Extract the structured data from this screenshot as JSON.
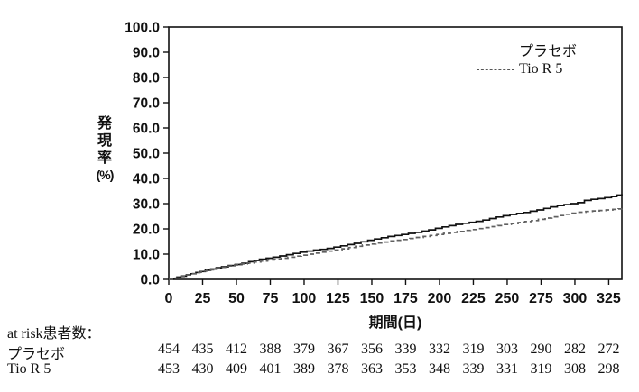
{
  "chart_data": {
    "type": "line",
    "subtype": "step-kaplan-meier",
    "title": "",
    "xlabel": "期間(日)",
    "ylabel": "発現率(%)",
    "ylabel_lines": [
      "発",
      "現",
      "率",
      "(%)"
    ],
    "xlim": [
      0,
      334.7
    ],
    "ylim": [
      0,
      100
    ],
    "x_ticks": [
      0,
      25,
      50,
      75,
      100,
      125,
      150,
      175,
      200,
      225,
      250,
      275,
      300,
      325
    ],
    "y_ticks": [
      0,
      10,
      20,
      30,
      40,
      50,
      60,
      70,
      80,
      90,
      100
    ],
    "y_tick_decimals": 1,
    "grid": false,
    "legend_position": "top-right-inside",
    "frame_color": "#111111",
    "series": [
      {
        "name": "プラセボ",
        "style": "solid",
        "color": "#111111",
        "points": [
          [
            0,
            0
          ],
          [
            3,
            0.4
          ],
          [
            6,
            0.9
          ],
          [
            9,
            1.3
          ],
          [
            13,
            1.8
          ],
          [
            16,
            2.2
          ],
          [
            20,
            2.7
          ],
          [
            23,
            3.1
          ],
          [
            27,
            3.6
          ],
          [
            31,
            4.1
          ],
          [
            35,
            4.6
          ],
          [
            39,
            5.0
          ],
          [
            44,
            5.5
          ],
          [
            49,
            5.9
          ],
          [
            54,
            6.4
          ],
          [
            59,
            7.0
          ],
          [
            63,
            7.5
          ],
          [
            67,
            8.0
          ],
          [
            72,
            8.4
          ],
          [
            77,
            8.8
          ],
          [
            82,
            9.3
          ],
          [
            87,
            9.8
          ],
          [
            92,
            10.3
          ],
          [
            97,
            10.8
          ],
          [
            102,
            11.2
          ],
          [
            107,
            11.6
          ],
          [
            112,
            11.9
          ],
          [
            117,
            12.3
          ],
          [
            122,
            12.8
          ],
          [
            127,
            13.3
          ],
          [
            132,
            13.8
          ],
          [
            137,
            14.3
          ],
          [
            142,
            14.9
          ],
          [
            147,
            15.5
          ],
          [
            152,
            16.0
          ],
          [
            157,
            16.5
          ],
          [
            162,
            17.0
          ],
          [
            167,
            17.4
          ],
          [
            172,
            17.8
          ],
          [
            177,
            18.2
          ],
          [
            182,
            18.6
          ],
          [
            187,
            19.1
          ],
          [
            192,
            19.6
          ],
          [
            197,
            20.2
          ],
          [
            202,
            20.8
          ],
          [
            207,
            21.3
          ],
          [
            212,
            21.8
          ],
          [
            217,
            22.2
          ],
          [
            222,
            22.6
          ],
          [
            227,
            23.0
          ],
          [
            232,
            23.5
          ],
          [
            237,
            24.1
          ],
          [
            242,
            24.7
          ],
          [
            247,
            25.2
          ],
          [
            252,
            25.7
          ],
          [
            257,
            26.1
          ],
          [
            262,
            26.5
          ],
          [
            267,
            27.0
          ],
          [
            272,
            27.5
          ],
          [
            277,
            28.1
          ],
          [
            282,
            28.7
          ],
          [
            287,
            29.2
          ],
          [
            292,
            29.6
          ],
          [
            297,
            30.0
          ],
          [
            302,
            30.4
          ],
          [
            307,
            31.3
          ],
          [
            312,
            31.7
          ],
          [
            317,
            32.0
          ],
          [
            322,
            32.4
          ],
          [
            327,
            32.8
          ],
          [
            331,
            33.4
          ],
          [
            334.7,
            33.8
          ]
        ]
      },
      {
        "name": "Tio R 5",
        "style": "dashed",
        "color": "#606060",
        "points": [
          [
            0,
            0
          ],
          [
            4,
            0.5
          ],
          [
            8,
            1.1
          ],
          [
            12,
            1.7
          ],
          [
            16,
            2.3
          ],
          [
            20,
            2.8
          ],
          [
            24,
            3.3
          ],
          [
            28,
            3.8
          ],
          [
            33,
            4.3
          ],
          [
            38,
            4.8
          ],
          [
            43,
            5.3
          ],
          [
            48,
            5.7
          ],
          [
            53,
            6.1
          ],
          [
            58,
            6.5
          ],
          [
            63,
            6.9
          ],
          [
            68,
            7.3
          ],
          [
            73,
            7.7
          ],
          [
            78,
            8.0
          ],
          [
            83,
            8.4
          ],
          [
            88,
            8.8
          ],
          [
            93,
            9.2
          ],
          [
            98,
            9.6
          ],
          [
            103,
            10.0
          ],
          [
            108,
            10.4
          ],
          [
            113,
            10.8
          ],
          [
            118,
            11.2
          ],
          [
            123,
            11.6
          ],
          [
            128,
            12.1
          ],
          [
            133,
            12.6
          ],
          [
            138,
            13.1
          ],
          [
            143,
            13.6
          ],
          [
            148,
            14.0
          ],
          [
            153,
            14.4
          ],
          [
            158,
            14.8
          ],
          [
            163,
            15.2
          ],
          [
            168,
            15.5
          ],
          [
            173,
            15.8
          ],
          [
            178,
            16.2
          ],
          [
            183,
            16.6
          ],
          [
            188,
            17.0
          ],
          [
            193,
            17.4
          ],
          [
            198,
            17.8
          ],
          [
            203,
            18.2
          ],
          [
            208,
            18.6
          ],
          [
            213,
            19.0
          ],
          [
            218,
            19.4
          ],
          [
            223,
            19.7
          ],
          [
            228,
            20.1
          ],
          [
            233,
            20.5
          ],
          [
            238,
            20.9
          ],
          [
            243,
            21.3
          ],
          [
            248,
            21.7
          ],
          [
            253,
            22.1
          ],
          [
            258,
            22.5
          ],
          [
            263,
            22.9
          ],
          [
            268,
            23.3
          ],
          [
            273,
            23.8
          ],
          [
            278,
            24.3
          ],
          [
            283,
            24.8
          ],
          [
            288,
            25.3
          ],
          [
            293,
            25.8
          ],
          [
            298,
            26.2
          ],
          [
            303,
            26.6
          ],
          [
            308,
            26.9
          ],
          [
            313,
            27.1
          ],
          [
            318,
            27.3
          ],
          [
            323,
            27.5
          ],
          [
            328,
            27.7
          ],
          [
            332,
            27.9
          ],
          [
            334.7,
            28.0
          ]
        ]
      }
    ]
  },
  "at_risk": {
    "header": "at risk患者数：",
    "rows": [
      {
        "label": "プラセボ",
        "values": [
          454,
          435,
          412,
          388,
          379,
          367,
          356,
          339,
          332,
          319,
          303,
          290,
          282,
          272
        ]
      },
      {
        "label": "Tio R 5",
        "values": [
          453,
          430,
          409,
          401,
          389,
          378,
          363,
          353,
          348,
          339,
          331,
          319,
          308,
          298
        ]
      }
    ]
  }
}
